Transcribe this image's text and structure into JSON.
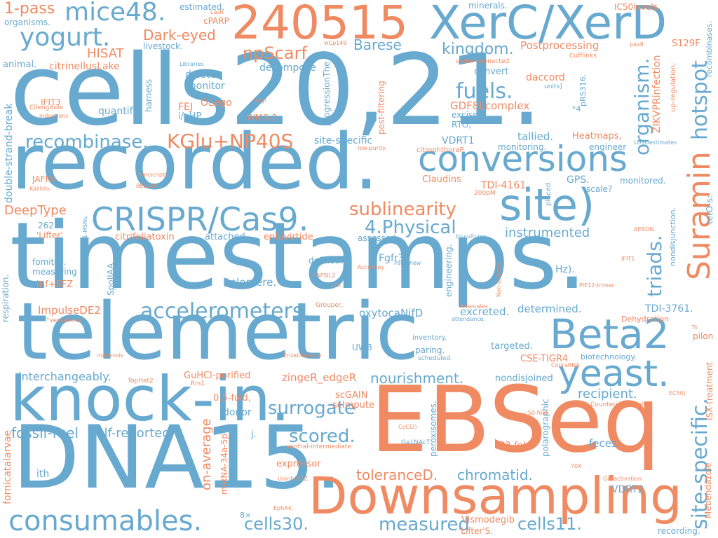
{
  "palette": {
    "blue": "#67a9cf",
    "orange": "#ef8a62",
    "background": "#ffffff"
  },
  "words": {
    "cells20_21": "cells20,21.",
    "timestamps": "timestamps.",
    "recorded": "recorded.",
    "telemetric": "telemetric",
    "ebseq": "EBSeq",
    "dna15": "DNA15.",
    "knock_in": "knock-in.",
    "downsampling": "Downsampling",
    "xerc_xerd": "XerC/XerD",
    "n240515": "240515",
    "site": "site)",
    "conversions": "conversions",
    "crispr": "CRISPR/Cas9.",
    "beta2": "Beta2",
    "yeast": "yeast.",
    "consumables": "consumables.",
    "accelerometers": "accelerometers.",
    "suramin": "Suramin",
    "mice48": "mice48.",
    "yogurt": "yogurt.",
    "kglu": "KGlu+NP40S",
    "recombinase": "recombinase.",
    "sublinearity": "sublinearity",
    "physical": "4.Physical",
    "hotspot": "hotspot",
    "organism": "organism.",
    "triads": "triads.",
    "site_specific": "site-specific.",
    "fuels": "fuels.",
    "npscarf": "npScarf",
    "kingdom": "kingdom.",
    "barese": "Barese",
    "dark_eyed": "Dark-eyed",
    "one_pass": "1-pass",
    "hisat": "HISAT",
    "citrinellus": "citrinellusLake",
    "postprocessing": "Postprocessing",
    "deeptype": "DeepType",
    "surrogate": "surrogate",
    "scored": "scored.",
    "fossil_fuel": "fossil-fuel",
    "self_reported": "self-reported.",
    "tolerance_d": "toleranceD.",
    "chromatid": "chromatid.",
    "measured": "measured",
    "cells30": "cells30.",
    "cells11": "cells11.",
    "on_average": "on-average",
    "nourishment": "nourishment.",
    "interchangeably": "interchangeably.",
    "recipient": "recipient.",
    "instrumented": "instrumented",
    "determined": "determined.",
    "excreted": "excreted.",
    "oxytoca": "oxytocaNifD",
    "impulse": "ImpulseDE2",
    "telomere": "telomere.",
    "gdf8": "GDF8Lcomplex",
    "tdi4161": "TDI-4161",
    "tdi3761": "TDI-3761.",
    "zikv": "ZIKVPRinfection",
    "double_strand": "double-strand-break",
    "gps": "GPS.",
    "scale": "scale?",
    "conversions_small": "convert",
    "heatmaps": "Heatmaps,",
    "engineer": "engineer",
    "tallied": "tallied.",
    "monitoring": "monitoring.",
    "monitored": "monitored.",
    "vdrt1": "VDRT1",
    "vdrt2": "VDRT2",
    "claudins": "Claudins",
    "site_specific2": "site-specific",
    "decompose": "decompose",
    "delete": "delete",
    "monitor": "monitor",
    "quantify": "quantify",
    "harness": "harness",
    "olego": "OLego",
    "fej": "FEJ",
    "ivhp": "i/vHP.",
    "wmg2": "WMG-2",
    "daccord": "daccord",
    "excise": "excise",
    "rto": "RTO,",
    "livestock": "livestock.",
    "animal": "animal.",
    "organisms": "organisms.",
    "estimated": "estimated.",
    "cparp": "cPARP",
    "minerals": "minerals.",
    "ic50": "IC50levels",
    "s129f": "S129F",
    "ifit3": "IFIT3",
    "targeted": "targeted.",
    "cse_tigr4": "CSE-TIGR4",
    "biotechnology": "biotechnology.",
    "nondisjoined": "nondisjoined",
    "scgain": "scGAIN",
    "scimpute": "scImpute",
    "zinger": "zingeR_edgeR",
    "gucl": "GuHCl-purified",
    "donor": "donor",
    "fold05": "0.5-fold,",
    "fold32": "32-fold",
    "expressor": "expressor",
    "feces": "feces.",
    "ith": "ith",
    "inf_efz": "Inf+EFZ",
    "spoii": "SpoIIAA",
    "fomites": "fomites.",
    "measuring": "measuring",
    "defined": "defined.",
    "fgfr3": "Fgfr3,",
    "enfuvirtide": "enfuvirtide",
    "citrifoliatoxin": "citrifoliatoxin",
    "attached": "attached.",
    "assessed": "assessed.",
    "lifter": "'Lifter'",
    "n262": "262.",
    "jaffa": "JAFFA",
    "hz": "Hz).",
    "placed": "placed.",
    "vismodegib": "Vismodegib",
    "lifters": "'Lifter'S.",
    "recording": "recording.",
    "mebendazole": "Mebendazole",
    "fornicata": "fornicatalarvae",
    "respiration": "respiration.",
    "mirna": "miRNA-34a-5p",
    "peroxisomes": "peroxisomes.",
    "polarographic": "polarographic",
    "isx": "ISX-treatment",
    "tetos": "tetO-s:",
    "nondisjunction": "nondisjunction.",
    "inventory": "inventory.",
    "paring": "paring.",
    "uwb": "UWB",
    "j": "j.",
    "pilon": "pilon",
    "dehydration": "Dehydration",
    "prs316": "pRS316.",
    "x4": "*4",
    "up_reg": "up-regulation,",
    "recombinases": "recombinases.",
    "post_filtering": "post-filtering",
    "progression": "progressionThe",
    "n8x": "8×",
    "citrophthora": "citrophthoraP.",
    "cufflinks": "Cufflinks",
    "under_connected": "under-connected",
    "units": "units]",
    "leos": "LOSOestimates",
    "lasr": "LasR",
    "libraries": "Libraries",
    "vegf": "Vegf",
    "cilengitide": "Cilengitide",
    "inductions": "inductions",
    "transcripts": "Transcripts",
    "bella": "BELLA's",
    "kallisto": "Kallisto,",
    "wcp149": "wCp149",
    "pax8": "pax8",
    "low_purity": "low-purity",
    "n200pm": "200pM",
    "tri_cultures": "tri-cultures",
    "aeron": "AERON",
    "panoview": "PanoView",
    "rafsil2": "RAFSIL2",
    "accucopy": "Accucopy",
    "nd1": "nDi",
    "grouper": "Grouper,",
    "a_females": "A-females",
    "attendance": "attendance.",
    "non_uniform": "Non-uniform",
    "engineering": "engineering.",
    "pie12": "PIE12-trimer",
    "ifit1": "IFIT1",
    "vesselless": "\"vesselless\"",
    "maliensis": "maliensis",
    "enzalutamide": "Enzalutamide",
    "scheduled": "scheduled.",
    "tophat2": "TopHat2",
    "rrs1": "Rrs1",
    "ventral": "ventral-intermediate",
    "ga1nac": "Ga1NAcT",
    "coc12": "CoCl2)",
    "fold50": "~50-fold",
    "counterintuitively": "Counterintuitively,",
    "ec50": "EC50)",
    "copra": "CopraRNA",
    "n70x": "70X",
    "gosactivation": "Gosactivation",
    "uninf": "Uninf+EFZ",
    "epha4": "EphA4,",
    "tk": "Tk",
    "di_msns": "D1-MSNs,",
    "dash": "-"
  }
}
